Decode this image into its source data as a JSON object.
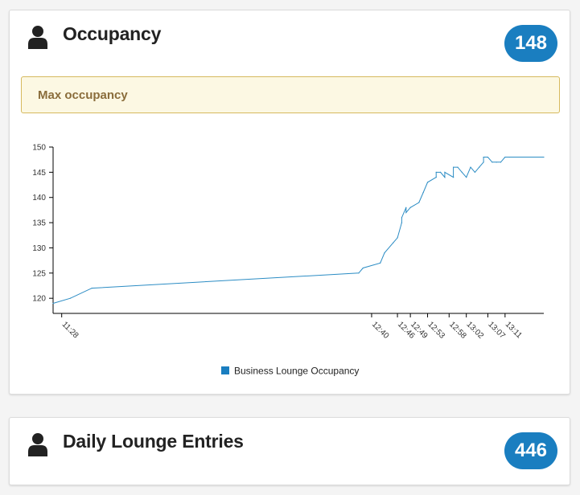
{
  "colors": {
    "accent": "#1a7ec0",
    "line": "#2b8cc4",
    "alert_bg": "#fcf8e3",
    "alert_text": "#8a6d3b"
  },
  "occupancy": {
    "icon": "person-icon",
    "title": "Occupancy",
    "count": "148",
    "alert": "Max occupancy"
  },
  "daily_entries": {
    "icon": "person-icon",
    "title": "Daily Lounge Entries",
    "count": "446"
  },
  "chart_data": {
    "type": "line",
    "title": "",
    "xlabel": "",
    "ylabel": "",
    "ylim": [
      117,
      150
    ],
    "yticks": [
      120,
      125,
      130,
      135,
      140,
      145,
      150
    ],
    "xrange": [
      "11:26",
      "13:20"
    ],
    "xticks": [
      "11:28",
      "12:40",
      "12:46",
      "12:49",
      "12:53",
      "12:58",
      "13:02",
      "13:07",
      "13:11"
    ],
    "legend_position": "bottom",
    "grid": false,
    "series": [
      {
        "name": "Business Lounge Occupancy",
        "x": [
          "11:26",
          "11:30",
          "11:35",
          "12:37",
          "12:38",
          "12:42",
          "12:43",
          "12:45",
          "12:46",
          "12:47",
          "12:47",
          "12:48",
          "12:48",
          "12:49",
          "12:51",
          "12:52",
          "12:53",
          "12:55",
          "12:55",
          "12:56",
          "12:57",
          "12:57",
          "12:59",
          "12:59",
          "13:00",
          "13:01",
          "13:02",
          "13:03",
          "13:04",
          "13:05",
          "13:06",
          "13:06",
          "13:07",
          "13:08",
          "13:09",
          "13:10",
          "13:11",
          "13:12",
          "13:20"
        ],
        "y": [
          119,
          120,
          122,
          125,
          126,
          127,
          129,
          131,
          132,
          135,
          136,
          138,
          137,
          138,
          139,
          141,
          143,
          144,
          145,
          145,
          144,
          145,
          144,
          146,
          146,
          145,
          144,
          146,
          145,
          146,
          147,
          148,
          148,
          147,
          147,
          147,
          148,
          148,
          148
        ]
      }
    ]
  }
}
